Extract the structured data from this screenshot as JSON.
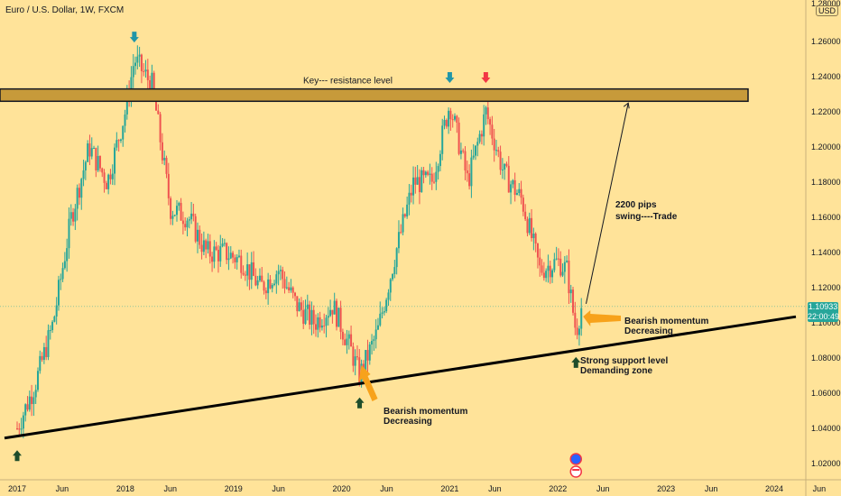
{
  "header": {
    "title": "Euro / U.S. Dollar, 1W, FXCM"
  },
  "price_axis": {
    "currency": "USD",
    "current_price": "1.10933",
    "countdown": "22:00:49",
    "top_label": "1.28000"
  },
  "colors": {
    "background": "#ffe399",
    "up_candle": "#26a69a",
    "down_candle": "#ef5350",
    "trendline": "#000000",
    "resistance_band": "#c79a3a",
    "arrow_blue": "#2962ff",
    "arrow_teal": "#2196a8",
    "arrow_red": "#f23645",
    "arrow_green": "#1e4d2b",
    "callout_orange": "#f7a21b",
    "price_label_bg": "#26a69a"
  },
  "annotations": {
    "resistance": "Key--- resistance level",
    "trade_line1": "2200 pips",
    "trade_line2": "swing----Trade",
    "bearish1_line1": "Bearish momentum",
    "bearish1_line2": "Decreasing",
    "bearish2_line1": "Bearish momentum",
    "bearish2_line2": "Decreasing",
    "support_line1": "Strong support level",
    "support_line2": "Demanding zone"
  },
  "chart_data": {
    "type": "candlestick",
    "title": "Euro / U.S. Dollar, 1W, FXCM",
    "ylim": [
      1.01,
      1.28
    ],
    "y_ticks": [
      1.02,
      1.04,
      1.06,
      1.08,
      1.1,
      1.12,
      1.14,
      1.16,
      1.18,
      1.2,
      1.22,
      1.24,
      1.26
    ],
    "y_tick_labels": [
      "1.02000",
      "1.04000",
      "1.06000",
      "1.08000",
      "1.10000",
      "1.12000",
      "1.14000",
      "1.16000",
      "1.18000",
      "1.20000",
      "1.22000",
      "1.24000",
      "1.26000"
    ],
    "x_range": [
      "2017-01",
      "2024-09"
    ],
    "x_ticks": [
      {
        "date": "2017-01",
        "label": "2017"
      },
      {
        "date": "2017-06",
        "label": "Jun"
      },
      {
        "date": "2018-01",
        "label": "2018"
      },
      {
        "date": "2018-06",
        "label": "Jun"
      },
      {
        "date": "2019-01",
        "label": "2019"
      },
      {
        "date": "2019-06",
        "label": "Jun"
      },
      {
        "date": "2020-01",
        "label": "2020"
      },
      {
        "date": "2020-06",
        "label": "Jun"
      },
      {
        "date": "2021-01",
        "label": "2021"
      },
      {
        "date": "2021-06",
        "label": "Jun"
      },
      {
        "date": "2022-01",
        "label": "2022"
      },
      {
        "date": "2022-06",
        "label": "Jun"
      },
      {
        "date": "2023-01",
        "label": "2023"
      },
      {
        "date": "2023-06",
        "label": "Jun"
      },
      {
        "date": "2024-01",
        "label": "2024"
      },
      {
        "date": "2024-06",
        "label": "Jun"
      }
    ],
    "price_path": [
      [
        "2017-01",
        1.04
      ],
      [
        "2017-03",
        1.065
      ],
      [
        "2017-05",
        1.1
      ],
      [
        "2017-07",
        1.16
      ],
      [
        "2017-09",
        1.2
      ],
      [
        "2017-11",
        1.18
      ],
      [
        "2018-01",
        1.22
      ],
      [
        "2018-02",
        1.25
      ],
      [
        "2018-04",
        1.235
      ],
      [
        "2018-06",
        1.165
      ],
      [
        "2018-08",
        1.16
      ],
      [
        "2018-10",
        1.14
      ],
      [
        "2018-12",
        1.14
      ],
      [
        "2019-02",
        1.135
      ],
      [
        "2019-04",
        1.12
      ],
      [
        "2019-06",
        1.13
      ],
      [
        "2019-08",
        1.11
      ],
      [
        "2019-10",
        1.1
      ],
      [
        "2019-12",
        1.11
      ],
      [
        "2020-02",
        1.085
      ],
      [
        "2020-03",
        1.07
      ],
      [
        "2020-05",
        1.095
      ],
      [
        "2020-07",
        1.14
      ],
      [
        "2020-09",
        1.18
      ],
      [
        "2020-11",
        1.18
      ],
      [
        "2021-01",
        1.225
      ],
      [
        "2021-03",
        1.18
      ],
      [
        "2021-05",
        1.22
      ],
      [
        "2021-07",
        1.185
      ],
      [
        "2021-09",
        1.17
      ],
      [
        "2021-11",
        1.13
      ],
      [
        "2022-01",
        1.135
      ],
      [
        "2022-02",
        1.13
      ],
      [
        "2022-03",
        1.095
      ],
      [
        "2022-03-20",
        1.1093
      ]
    ],
    "resistance_level": [
      1.226,
      1.233
    ],
    "support_trendline": [
      [
        "2017-01",
        1.035
      ],
      [
        "2024-09",
        1.1035
      ]
    ],
    "projection_line": [
      [
        "2022-03-20",
        1.1093
      ],
      [
        "2022-08",
        1.225
      ]
    ],
    "markers": [
      {
        "kind": "down",
        "color": "teal",
        "date": "2018-02",
        "price": 1.262
      },
      {
        "kind": "down",
        "color": "teal",
        "date": "2021-01",
        "price": 1.239
      },
      {
        "kind": "down",
        "color": "red",
        "date": "2021-05",
        "price": 1.239
      },
      {
        "kind": "up",
        "color": "green",
        "date": "2017-01",
        "price": 1.025
      },
      {
        "kind": "up",
        "color": "green",
        "date": "2020-03",
        "price": 1.055
      },
      {
        "kind": "up",
        "color": "green",
        "date": "2022-03",
        "price": 1.078
      }
    ]
  }
}
